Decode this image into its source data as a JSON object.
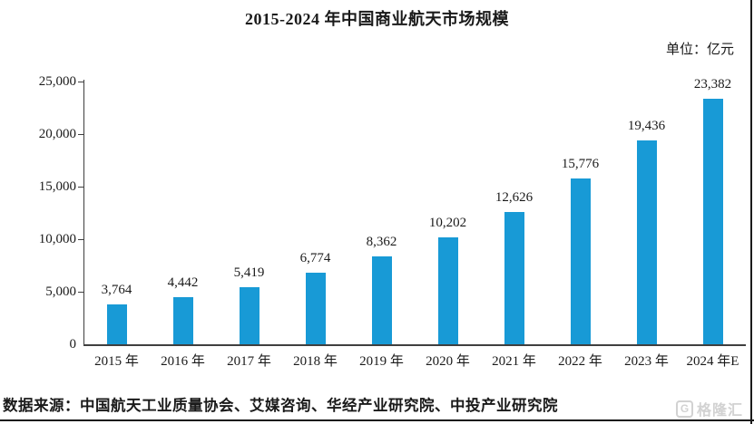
{
  "title": "2015-2024 年中国商业航天市场规模",
  "unit_label": "单位：亿元",
  "source_note": "数据来源：中国航天工业质量协会、艾媒咨询、华经产业研究院、中投产业研究院",
  "watermark": {
    "logo_letter": "G",
    "text": "格隆汇"
  },
  "chart_data": {
    "type": "bar",
    "title": "2015-2024 年中国商业航天市场规模",
    "categories": [
      "2015 年",
      "2016 年",
      "2017 年",
      "2018 年",
      "2019 年",
      "2020 年",
      "2021 年",
      "2022 年",
      "2023 年",
      "2024 年E"
    ],
    "values": [
      3764,
      4442,
      5419,
      6774,
      8362,
      10202,
      12626,
      15776,
      19436,
      23382
    ],
    "value_labels": [
      "3,764",
      "4,442",
      "5,419",
      "6,774",
      "8,362",
      "10,202",
      "12,626",
      "15,776",
      "19,436",
      "23,382"
    ],
    "xlabel": "",
    "ylabel": "单位：亿元",
    "ylim": [
      0,
      25000
    ],
    "ytick_interval": 5000,
    "ytick_labels": [
      "0",
      "5,000",
      "10,000",
      "15,000",
      "20,000",
      "25,000"
    ],
    "bar_color": "#189ad6",
    "grid": false,
    "legend": false
  }
}
